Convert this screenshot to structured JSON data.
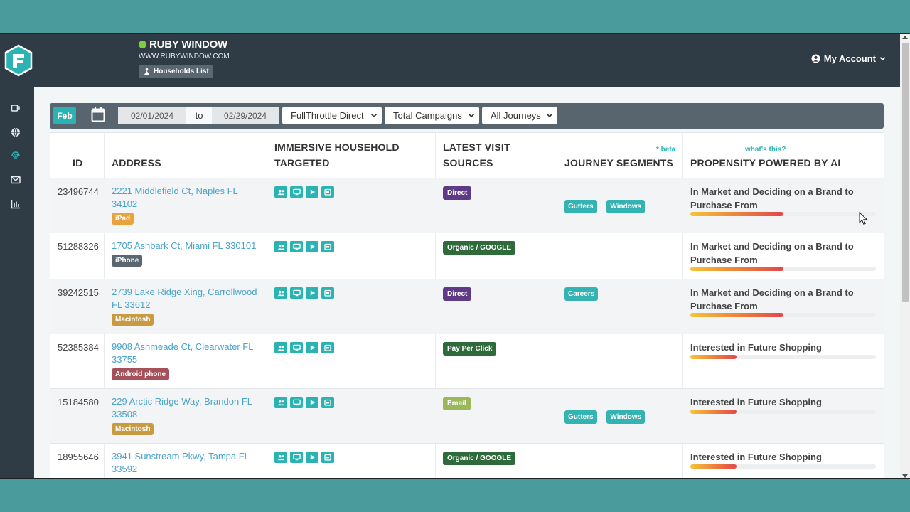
{
  "brand": {
    "title": "RUBY WINDOW",
    "url": "WWW.RUBYWINDOW.COM",
    "households_button": "Households List"
  },
  "account": {
    "label": "My Account"
  },
  "sidebar": {
    "icons": [
      "coffee-icon",
      "globe-icon",
      "fingerprint-icon",
      "envelope-icon",
      "bar-chart-icon"
    ]
  },
  "filters": {
    "month": "Feb",
    "date_from": "02/01/2024",
    "to_label": "to",
    "date_to": "02/29/2024",
    "channel": "FullThrottle Direct",
    "campaigns": "Total Campaigns",
    "journeys": "All Journeys"
  },
  "table": {
    "headers": {
      "id": "ID",
      "address": "ADDRESS",
      "immersive_1": "IMMERSIVE HOUSEHOLD",
      "immersive_2": "TARGETED",
      "sources_1": "LATEST VISIT",
      "sources_2": "SOURCES",
      "journey": "JOURNEY SEGMENTS",
      "journey_note": "* beta",
      "propensity": "PROPENSITY POWERED BY AI",
      "propensity_note": "what's this?"
    },
    "rows": [
      {
        "id": "23496744",
        "address_1": "2221 Middlefield Ct, Naples FL",
        "address_2": "34102",
        "device": "iPad",
        "device_color": "#e8a33d",
        "source": "Direct",
        "source_color": "#5e3a87",
        "segments": [
          "Gutters",
          "Windows"
        ],
        "propensity_1": "In Market and Deciding on a Brand to",
        "propensity_2": "Purchase From",
        "score": 0.5
      },
      {
        "id": "51288326",
        "address_1": "1705 Ashbark Ct, Miami FL 330101",
        "address_2": "",
        "device": "iPhone",
        "device_color": "#5a6670",
        "source": "Organic / GOOGLE",
        "source_color": "#2f6b3a",
        "segments": [],
        "propensity_1": "In Market and Deciding on a Brand to",
        "propensity_2": "Purchase From",
        "score": 0.5
      },
      {
        "id": "39242515",
        "address_1": "2739 Lake Ridge Xing, Carrollwood",
        "address_2": "FL 33612",
        "device": "Macintosh",
        "device_color": "#c99a3f",
        "source": "Direct",
        "source_color": "#5e3a87",
        "segments": [
          "Careers"
        ],
        "propensity_1": "In Market and Deciding on a Brand to",
        "propensity_2": "Purchase From",
        "score": 0.5
      },
      {
        "id": "52385384",
        "address_1": "9908 Ashmeade Ct, Clearwater FL",
        "address_2": "33755",
        "device": "Android phone",
        "device_color": "#a5505a",
        "source": "Pay Per Click",
        "source_color": "#2f6b3a",
        "segments": [],
        "propensity_1": "Interested in Future Shopping",
        "propensity_2": "",
        "score": 0.25
      },
      {
        "id": "15184580",
        "address_1": "229 Arctic Ridge Way, Brandon FL",
        "address_2": "33508",
        "device": "Macintosh",
        "device_color": "#c99a3f",
        "source": "Email",
        "source_color": "#9ab85a",
        "segments": [
          "Gutters",
          "Windows"
        ],
        "propensity_1": "Interested in Future Shopping",
        "propensity_2": "",
        "score": 0.25
      },
      {
        "id": "18955646",
        "address_1": "3941 Sunstream Pkwy, Tampa FL",
        "address_2": "33592",
        "device": "",
        "device_color": "#c99a3f",
        "source": "Organic / GOOGLE",
        "source_color": "#2f6b3a",
        "segments": [],
        "propensity_1": "Interested in Future Shopping",
        "propensity_2": "",
        "score": 0.25
      }
    ]
  },
  "colors": {
    "teal": "#2bb3b3",
    "navy": "#2f3b45",
    "link": "#4aa3c9"
  }
}
